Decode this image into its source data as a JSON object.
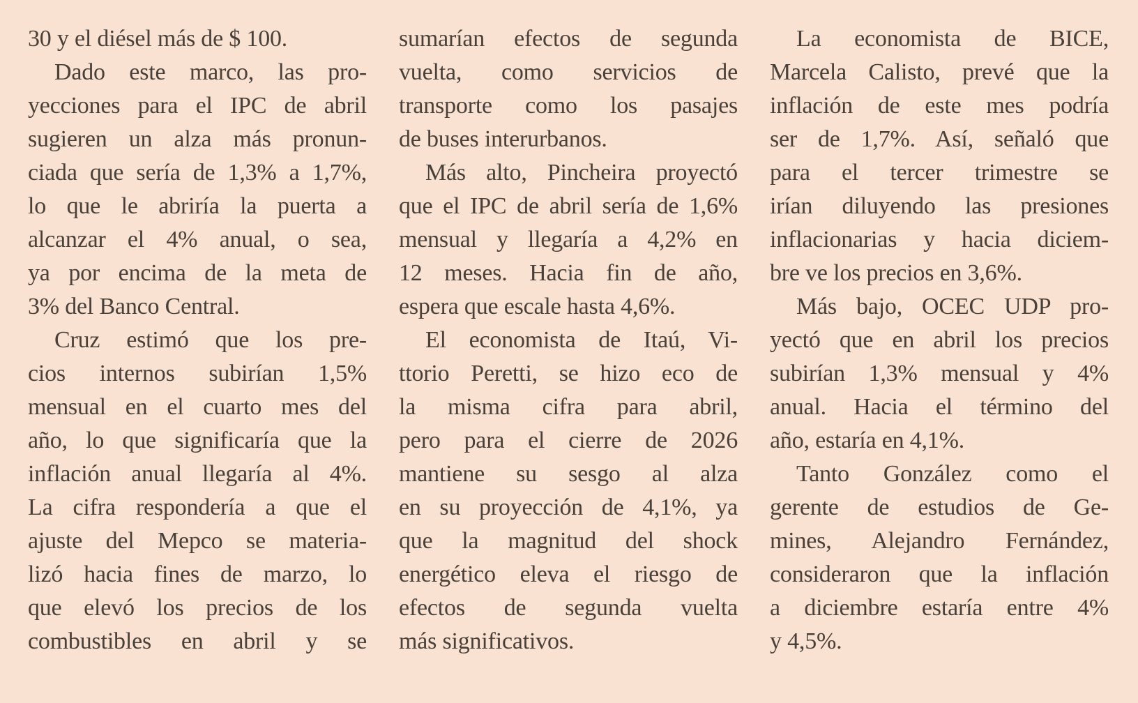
{
  "colors": {
    "background": "#f9e2d1",
    "text": "#49403a"
  },
  "article": {
    "columns": [
      {
        "lines": [
          {
            "text": "30 y el diésel más de $ 100.",
            "indent": false,
            "para_end": true
          },
          {
            "text": "Dado este marco, las pro-",
            "indent": true,
            "para_end": false
          },
          {
            "text": "yecciones para el IPC de abril",
            "indent": false,
            "para_end": false
          },
          {
            "text": "sugieren un alza más pronun-",
            "indent": false,
            "para_end": false
          },
          {
            "text": "ciada que sería de 1,3% a 1,7%,",
            "indent": false,
            "para_end": false
          },
          {
            "text": "lo que le abriría la puerta a",
            "indent": false,
            "para_end": false
          },
          {
            "text": "alcanzar el 4% anual, o sea,",
            "indent": false,
            "para_end": false
          },
          {
            "text": "ya por encima de la meta de",
            "indent": false,
            "para_end": false
          },
          {
            "text": "3% del Banco Central.",
            "indent": false,
            "para_end": true
          },
          {
            "text": "Cruz estimó que los pre-",
            "indent": true,
            "para_end": false
          },
          {
            "text": "cios internos subirían 1,5%",
            "indent": false,
            "para_end": false
          },
          {
            "text": "mensual en el cuarto mes del",
            "indent": false,
            "para_end": false
          },
          {
            "text": "año, lo que significaría que la",
            "indent": false,
            "para_end": false
          },
          {
            "text": "inflación anual llegaría al 4%.",
            "indent": false,
            "para_end": false
          },
          {
            "text": "La cifra respondería a que el",
            "indent": false,
            "para_end": false
          },
          {
            "text": "ajuste del Mepco se materia-",
            "indent": false,
            "para_end": false
          },
          {
            "text": "lizó hacia fines de marzo, lo",
            "indent": false,
            "para_end": false
          },
          {
            "text": "que elevó los precios de los",
            "indent": false,
            "para_end": false
          },
          {
            "text": "combustibles en abril y se",
            "indent": false,
            "para_end": false
          }
        ]
      },
      {
        "lines": [
          {
            "text": "sumarían efectos de segunda",
            "indent": false,
            "para_end": false
          },
          {
            "text": "vuelta, como servicios de",
            "indent": false,
            "para_end": false
          },
          {
            "text": "transporte como los pasajes",
            "indent": false,
            "para_end": false
          },
          {
            "text": "de buses interurbanos.",
            "indent": false,
            "para_end": true
          },
          {
            "text": "Más alto, Pincheira proyectó",
            "indent": true,
            "para_end": false
          },
          {
            "text": "que el IPC de abril sería de 1,6%",
            "indent": false,
            "para_end": false
          },
          {
            "text": "mensual y llegaría a 4,2% en",
            "indent": false,
            "para_end": false
          },
          {
            "text": "12 meses. Hacia fin de año,",
            "indent": false,
            "para_end": false
          },
          {
            "text": "espera que escale hasta 4,6%.",
            "indent": false,
            "para_end": true
          },
          {
            "text": "El economista de Itaú, Vi-",
            "indent": true,
            "para_end": false
          },
          {
            "text": "ttorio Peretti, se hizo eco de",
            "indent": false,
            "para_end": false
          },
          {
            "text": "la misma cifra para abril,",
            "indent": false,
            "para_end": false
          },
          {
            "text": "pero para el cierre de 2026",
            "indent": false,
            "para_end": false
          },
          {
            "text": "mantiene su sesgo al alza",
            "indent": false,
            "para_end": false
          },
          {
            "text": "en su proyección de 4,1%, ya",
            "indent": false,
            "para_end": false
          },
          {
            "text": "que la magnitud del shock",
            "indent": false,
            "para_end": false
          },
          {
            "text": "energético eleva el riesgo de",
            "indent": false,
            "para_end": false
          },
          {
            "text": "efectos de segunda vuelta",
            "indent": false,
            "para_end": false
          },
          {
            "text": "más significativos.",
            "indent": false,
            "para_end": true
          }
        ]
      },
      {
        "lines": [
          {
            "text": "La economista de BICE,",
            "indent": true,
            "para_end": false
          },
          {
            "text": "Marcela Calisto, prevé que la",
            "indent": false,
            "para_end": false
          },
          {
            "text": "inflación de este mes podría",
            "indent": false,
            "para_end": false
          },
          {
            "text": "ser de 1,7%. Así, señaló que",
            "indent": false,
            "para_end": false
          },
          {
            "text": "para el tercer trimestre se",
            "indent": false,
            "para_end": false
          },
          {
            "text": "irían diluyendo las presiones",
            "indent": false,
            "para_end": false
          },
          {
            "text": "inflacionarias y hacia diciem-",
            "indent": false,
            "para_end": false
          },
          {
            "text": "bre ve los precios en 3,6%.",
            "indent": false,
            "para_end": true
          },
          {
            "text": "Más bajo, OCEC UDP pro-",
            "indent": true,
            "para_end": false
          },
          {
            "text": "yectó que en abril los precios",
            "indent": false,
            "para_end": false
          },
          {
            "text": "subirían 1,3% mensual y 4%",
            "indent": false,
            "para_end": false
          },
          {
            "text": "anual. Hacia el término del",
            "indent": false,
            "para_end": false
          },
          {
            "text": "año, estaría en 4,1%.",
            "indent": false,
            "para_end": true
          },
          {
            "text": "Tanto González como el",
            "indent": true,
            "para_end": false
          },
          {
            "text": "gerente de estudios de Ge-",
            "indent": false,
            "para_end": false
          },
          {
            "text": "mines, Alejandro Fernández,",
            "indent": false,
            "para_end": false
          },
          {
            "text": "consideraron que la inflación",
            "indent": false,
            "para_end": false
          },
          {
            "text": "a diciembre estaría entre 4%",
            "indent": false,
            "para_end": false
          },
          {
            "text": "y 4,5%.",
            "indent": false,
            "para_end": true
          }
        ]
      }
    ]
  }
}
